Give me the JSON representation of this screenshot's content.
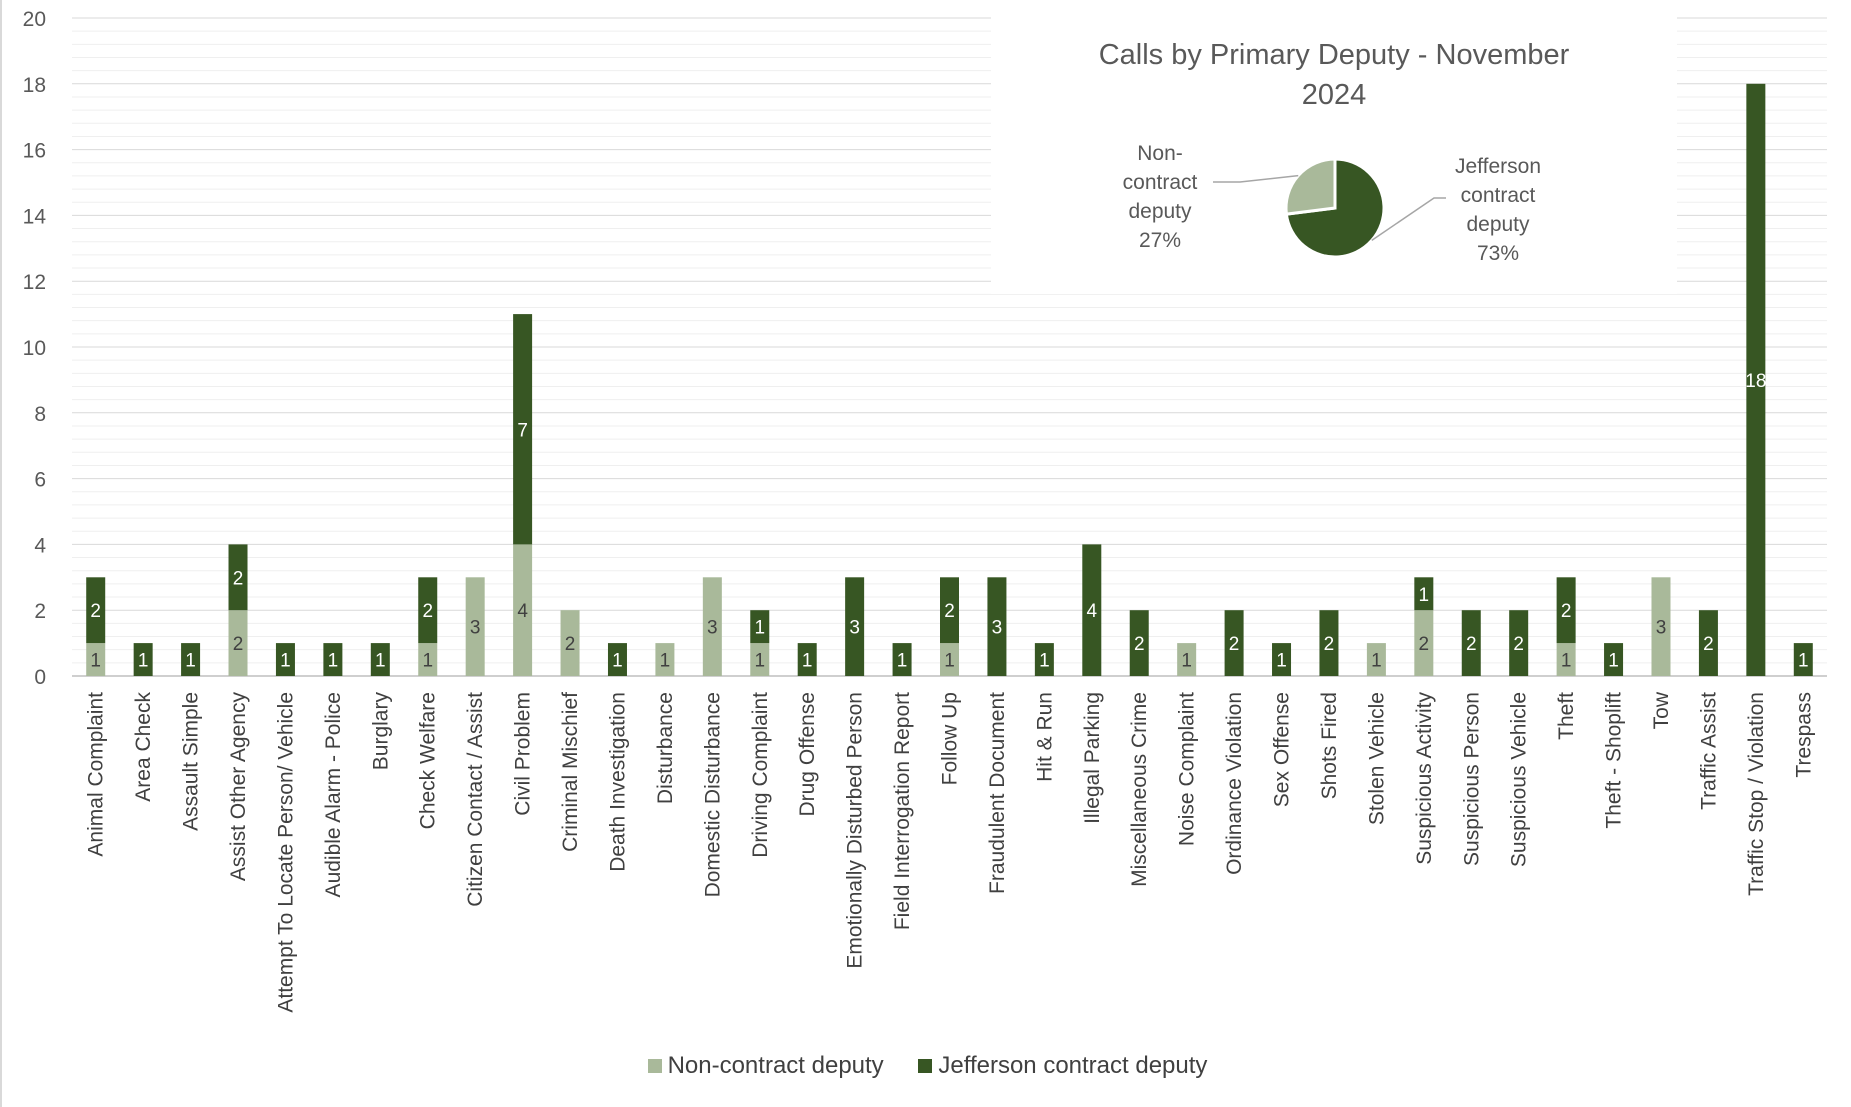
{
  "chart_data": [
    {
      "type": "bar",
      "stacked": true,
      "categories": [
        "Animal Complaint",
        "Area Check",
        "Assault Simple",
        "Assist Other Agency",
        "Attempt To Locate Person/ Vehicle",
        "Audible Alarm - Police",
        "Burglary",
        "Check Welfare",
        "Citizen Contact / Assist",
        "Civil Problem",
        "Criminal Mischief",
        "Death Investigation",
        "Disturbance",
        "Domestic Disturbance",
        "Driving Complaint",
        "Drug Offense",
        "Emotionally Disturbed Person",
        "Field Interrogation Report",
        "Follow Up",
        "Fraudulent Document",
        "Hit & Run",
        "Illegal Parking",
        "Miscellaneous Crime",
        "Noise Complaint",
        "Ordinance Violation",
        "Sex Offense",
        "Shots Fired",
        "Stolen Vehicle",
        "Suspicious Activity",
        "Suspicious Person",
        "Suspicious Vehicle",
        "Theft",
        "Theft - Shoplift",
        "Tow",
        "Traffic Assist",
        "Traffic Stop / Violation",
        "Trespass"
      ],
      "series": [
        {
          "name": "Non-contract deputy",
          "color": "#a9b99a",
          "values": [
            1,
            0,
            0,
            2,
            0,
            0,
            0,
            1,
            3,
            4,
            2,
            0,
            1,
            3,
            1,
            0,
            0,
            0,
            1,
            0,
            0,
            0,
            0,
            1,
            0,
            0,
            0,
            1,
            2,
            0,
            0,
            1,
            0,
            3,
            0,
            0,
            0
          ]
        },
        {
          "name": "Jefferson contract deputy",
          "color": "#375623",
          "values": [
            2,
            1,
            1,
            2,
            1,
            1,
            1,
            2,
            0,
            7,
            0,
            1,
            0,
            0,
            1,
            1,
            3,
            1,
            2,
            3,
            1,
            4,
            2,
            0,
            2,
            1,
            2,
            0,
            1,
            2,
            2,
            2,
            1,
            0,
            2,
            18,
            1
          ]
        }
      ],
      "ylim": [
        0,
        20
      ],
      "yticks": [
        0,
        2,
        4,
        6,
        8,
        10,
        12,
        14,
        16,
        18,
        20
      ],
      "grid": true,
      "legend": "bottom"
    },
    {
      "type": "pie",
      "title": "Calls by Primary Deputy - November 2024",
      "slices": [
        {
          "label": "Non-contract deputy",
          "value": 27,
          "display": "Non-contract deputy 27%",
          "color": "#a9b99a"
        },
        {
          "label": "Jefferson contract deputy",
          "value": 73,
          "display": "Jefferson contract deputy 73%",
          "color": "#375623"
        }
      ]
    }
  ]
}
